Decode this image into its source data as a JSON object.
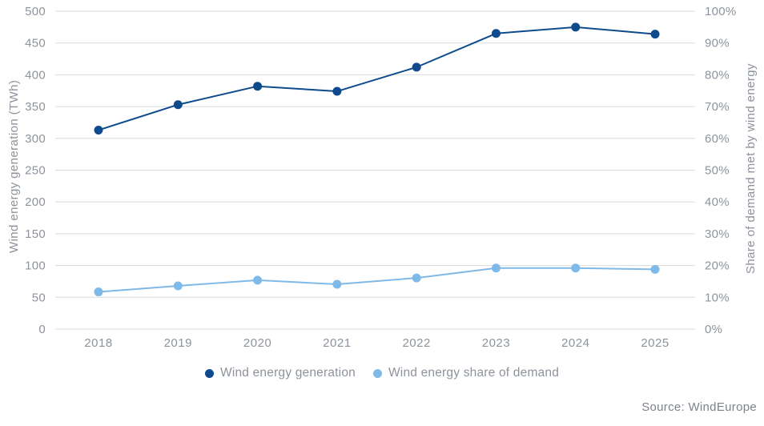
{
  "colors": {
    "background": "#ffffff",
    "grid": "#d9dbde",
    "tick_text": "#8d939c",
    "axis_title_text": "#8d939c",
    "source_text": "#7d838d"
  },
  "chart_data": {
    "type": "line",
    "title": "",
    "x_categories": [
      "2018",
      "2019",
      "2020",
      "2021",
      "2022",
      "2023",
      "2024",
      "2025"
    ],
    "series": [
      {
        "name": "Wind energy generation",
        "axis": "left",
        "color": "#0e4a8c",
        "values": [
          313,
          353,
          382,
          374,
          412,
          465,
          475,
          464
        ]
      },
      {
        "name": "Wind energy share of demand",
        "axis": "right",
        "color": "#7fb9e8",
        "values": [
          11.7,
          13.6,
          15.4,
          14.1,
          16.1,
          19.2,
          19.2,
          18.8
        ]
      }
    ],
    "left_axis": {
      "label": "Wind energy generation (TWh)",
      "min": 0,
      "max": 500,
      "step": 50,
      "suffix": ""
    },
    "right_axis": {
      "label": "Share of demand met by wind energy",
      "min": 0,
      "max": 100,
      "step": 10,
      "suffix": "%"
    },
    "grid": true,
    "legend_position": "bottom",
    "source": "Source: WindEurope"
  }
}
